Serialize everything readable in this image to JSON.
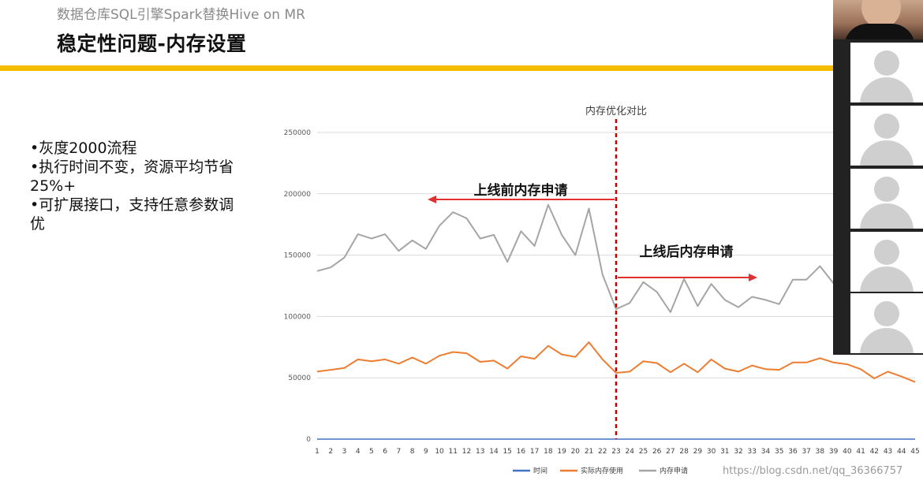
{
  "slide": {
    "subtitle": "数据仓库SQL引擎Spark替换Hive on MR",
    "title": "稳定性问题-内存设置",
    "bullets": [
      "•灰度2000流程",
      "•执行时间不变，资源平均节省",
      "25%+",
      "•可扩展接口，支持任意参数调",
      "优"
    ],
    "accent_color": "#f5bd00"
  },
  "chart_data": {
    "type": "line",
    "title": "内存优化对比",
    "x": [
      1,
      2,
      3,
      4,
      5,
      6,
      7,
      8,
      9,
      10,
      11,
      12,
      13,
      14,
      15,
      16,
      17,
      18,
      19,
      20,
      21,
      22,
      23,
      24,
      25,
      26,
      27,
      28,
      29,
      30,
      31,
      32,
      33,
      34,
      35,
      36,
      37,
      38,
      39,
      40,
      41,
      42,
      43,
      44,
      45
    ],
    "x_tick_labels": [
      "1",
      "2",
      "3",
      "4",
      "5",
      "6",
      "7",
      "8",
      "9",
      "10",
      "11",
      "12",
      "13",
      "14",
      "15",
      "16",
      "17",
      "18",
      "19",
      "20",
      "21",
      "22",
      "23",
      "24",
      "25",
      "26",
      "27",
      "28",
      "29",
      "30",
      "31",
      "32",
      "33",
      "34",
      "35",
      "36",
      "37",
      "38",
      "39",
      "40",
      "41",
      "42",
      "43",
      "44",
      "45"
    ],
    "ylim": [
      0,
      250000
    ],
    "y_tick_labels": [
      "0",
      "50000",
      "100000",
      "150000",
      "200000",
      "250000"
    ],
    "y_ticks": [
      0,
      50000,
      100000,
      150000,
      200000,
      250000
    ],
    "grid": true,
    "legend_placement": "bottom",
    "series": [
      {
        "name": "时间",
        "color": "#4472c4",
        "values": [
          0,
          0,
          0,
          0,
          0,
          0,
          0,
          0,
          0,
          0,
          0,
          0,
          0,
          0,
          0,
          0,
          0,
          0,
          0,
          0,
          0,
          0,
          0,
          0,
          0,
          0,
          0,
          0,
          0,
          0,
          0,
          0,
          0,
          0,
          0,
          0,
          0,
          0,
          0,
          0,
          0,
          0,
          0,
          0,
          0
        ]
      },
      {
        "name": "实际内存使用",
        "color": "#ed7d31",
        "values": [
          55000,
          56500,
          58000,
          65000,
          63500,
          65000,
          61500,
          66500,
          61500,
          68000,
          71000,
          70000,
          63000,
          64000,
          57500,
          67500,
          65500,
          76000,
          69000,
          67000,
          79000,
          65000,
          54000,
          55000,
          63500,
          62000,
          54500,
          61500,
          54500,
          65000,
          57500,
          55000,
          60000,
          57000,
          56500,
          62500,
          62500,
          66000,
          62500,
          61000,
          57000,
          49500,
          55000,
          51000,
          46500
        ]
      },
      {
        "name": "内存申请",
        "color": "#a5a5a5",
        "values": [
          137000,
          140000,
          148000,
          167000,
          163500,
          167000,
          153500,
          162000,
          155000,
          174000,
          185000,
          180000,
          163500,
          166500,
          144500,
          169500,
          157500,
          191000,
          166500,
          150000,
          188000,
          134000,
          106000,
          111000,
          128000,
          120000,
          103500,
          130500,
          108500,
          126500,
          113500,
          107500,
          116000,
          113500,
          110000,
          130000,
          130000,
          141000,
          127000,
          0,
          0,
          0,
          0,
          0,
          0
        ]
      }
    ],
    "visible_points": {
      "series_index": 2,
      "count": 39
    },
    "annotations": {
      "divider_label": "内存优化对比",
      "divider_x": 23,
      "before_label": "上线前内存申请",
      "after_label": "上线后内存申请"
    }
  },
  "watermark": "https://blog.csdn.net/qq_36366757",
  "video": {
    "participant_icons": [
      "person-icon",
      "person-icon",
      "person-icon",
      "person-icon",
      "person-icon"
    ]
  }
}
